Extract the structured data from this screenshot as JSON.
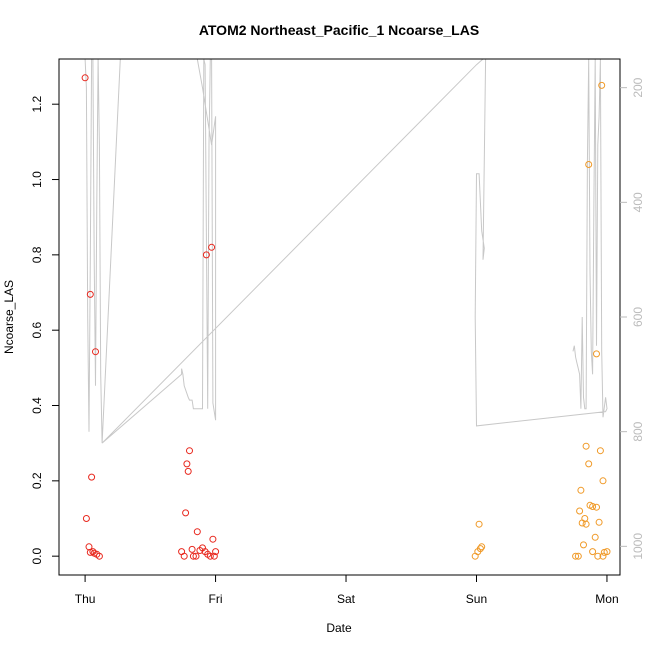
{
  "chart_data": {
    "type": "scatter",
    "title": "ATOM2 Northeast_Pacific_1 Ncoarse_LAS",
    "xlabel": "Date",
    "ylabel": "Ncoarse_LAS",
    "x_axis": {
      "unit": "days",
      "range": [
        -0.2,
        4.1
      ],
      "ticks": [
        0,
        1,
        2,
        3,
        4
      ],
      "tick_labels": [
        "Thu",
        "Fri",
        "Sat",
        "Sun",
        "Mon"
      ]
    },
    "y_axis": {
      "range": [
        -0.05,
        1.32
      ],
      "ticks": [
        0.0,
        0.2,
        0.4,
        0.6,
        0.8,
        1.0,
        1.2
      ],
      "tick_labels": [
        "0.0",
        "0.2",
        "0.4",
        "0.6",
        "0.8",
        "1.0",
        "1.2"
      ]
    },
    "y2_axis": {
      "range": [
        1050,
        150
      ],
      "reversed": true,
      "ticks": [
        200,
        400,
        600,
        800,
        1000
      ],
      "tick_labels": [
        "200",
        "400",
        "600",
        "800",
        "1000"
      ],
      "color": "#bbbbbb"
    },
    "grid": false,
    "series": [
      {
        "color": "#e8281e",
        "points": [
          [
            0.0,
            1.27
          ],
          [
            0.04,
            0.695
          ],
          [
            0.08,
            0.543
          ],
          [
            0.05,
            0.21
          ],
          [
            0.01,
            0.1
          ],
          [
            0.03,
            0.025
          ],
          [
            0.04,
            0.01
          ],
          [
            0.06,
            0.012
          ],
          [
            0.07,
            0.008
          ],
          [
            0.09,
            0.005
          ],
          [
            0.11,
            0.0
          ],
          [
            0.93,
            0.8
          ],
          [
            0.97,
            0.82
          ],
          [
            0.8,
            0.28
          ],
          [
            0.78,
            0.245
          ],
          [
            0.79,
            0.225
          ],
          [
            0.77,
            0.115
          ],
          [
            0.86,
            0.065
          ],
          [
            0.98,
            0.045
          ],
          [
            0.74,
            0.012
          ],
          [
            0.76,
            0.0
          ],
          [
            0.83,
            0.0
          ],
          [
            0.85,
            0.0
          ],
          [
            0.82,
            0.018
          ],
          [
            0.88,
            0.015
          ],
          [
            0.9,
            0.022
          ],
          [
            0.92,
            0.012
          ],
          [
            0.94,
            0.005
          ],
          [
            0.96,
            0.0
          ],
          [
            0.99,
            0.0
          ],
          [
            1.0,
            0.012
          ]
        ]
      },
      {
        "color": "#f09a28",
        "points": [
          [
            2.99,
            0.0
          ],
          [
            3.01,
            0.012
          ],
          [
            3.03,
            0.02
          ],
          [
            3.04,
            0.025
          ],
          [
            3.02,
            0.085
          ],
          [
            3.96,
            1.25
          ],
          [
            3.86,
            1.04
          ],
          [
            3.92,
            0.537
          ],
          [
            3.84,
            0.292
          ],
          [
            3.95,
            0.28
          ],
          [
            3.86,
            0.245
          ],
          [
            3.97,
            0.2
          ],
          [
            3.8,
            0.175
          ],
          [
            3.87,
            0.135
          ],
          [
            3.89,
            0.132
          ],
          [
            3.92,
            0.13
          ],
          [
            3.79,
            0.12
          ],
          [
            3.83,
            0.1
          ],
          [
            3.81,
            0.088
          ],
          [
            3.84,
            0.085
          ],
          [
            3.94,
            0.09
          ],
          [
            3.91,
            0.05
          ],
          [
            3.82,
            0.03
          ],
          [
            3.89,
            0.012
          ],
          [
            3.98,
            0.01
          ],
          [
            4.0,
            0.012
          ],
          [
            3.76,
            0.0
          ],
          [
            3.78,
            0.0
          ],
          [
            3.93,
            0.0
          ],
          [
            3.97,
            0.0
          ]
        ]
      }
    ],
    "secondary_line": {
      "color": "#c8c8c8",
      "axis": "y2",
      "points": [
        [
          0.0,
          150
        ],
        [
          0.01,
          200
        ],
        [
          0.02,
          600
        ],
        [
          0.03,
          800
        ],
        [
          0.04,
          500
        ],
        [
          0.05,
          150
        ],
        [
          0.06,
          150
        ],
        [
          0.07,
          500
        ],
        [
          0.08,
          720
        ],
        [
          0.09,
          400
        ],
        [
          0.1,
          150
        ],
        [
          0.11,
          300
        ],
        [
          0.12,
          700
        ],
        [
          0.13,
          820
        ],
        [
          0.27,
          150
        ],
        [
          0.79,
          150
        ],
        [
          0.86,
          150
        ],
        [
          0.9,
          200
        ],
        [
          0.97,
          300
        ],
        [
          1.0,
          250
        ],
        [
          1.0,
          780
        ],
        [
          0.98,
          750
        ],
        [
          0.97,
          150
        ],
        [
          0.96,
          150
        ],
        [
          0.95,
          300
        ],
        [
          0.94,
          760
        ],
        [
          0.92,
          160
        ],
        [
          0.91,
          150
        ],
        [
          0.9,
          760
        ],
        [
          0.83,
          760
        ],
        [
          0.82,
          745
        ],
        [
          0.8,
          745
        ],
        [
          0.79,
          740
        ],
        [
          0.76,
          720
        ],
        [
          0.75,
          700
        ],
        [
          0.74,
          690
        ],
        [
          0.74,
          700
        ],
        [
          0.13,
          820
        ],
        [
          3.0,
          160
        ],
        [
          3.05,
          150
        ],
        [
          3.06,
          150
        ],
        [
          3.07,
          150
        ],
        [
          3.05,
          500
        ],
        [
          3.06,
          480
        ],
        [
          3.04,
          450
        ],
        [
          3.03,
          400
        ],
        [
          3.02,
          350
        ],
        [
          3.0,
          350
        ],
        [
          2.99,
          600
        ],
        [
          3.0,
          790
        ],
        [
          3.99,
          765
        ],
        [
          4.0,
          760
        ],
        [
          3.99,
          740
        ],
        [
          3.97,
          775
        ],
        [
          3.96,
          660
        ],
        [
          3.95,
          150
        ],
        [
          3.94,
          250
        ],
        [
          3.93,
          300
        ],
        [
          3.92,
          650
        ],
        [
          3.91,
          150
        ],
        [
          3.9,
          400
        ],
        [
          3.89,
          700
        ],
        [
          3.88,
          660
        ],
        [
          3.87,
          520
        ],
        [
          3.86,
          150
        ],
        [
          3.85,
          330
        ],
        [
          3.84,
          760
        ],
        [
          3.83,
          760
        ],
        [
          3.82,
          740
        ],
        [
          3.81,
          600
        ],
        [
          3.8,
          760
        ],
        [
          3.79,
          700
        ],
        [
          3.78,
          690
        ],
        [
          3.77,
          680
        ],
        [
          3.76,
          670
        ],
        [
          3.75,
          650
        ],
        [
          3.74,
          660
        ]
      ]
    }
  }
}
